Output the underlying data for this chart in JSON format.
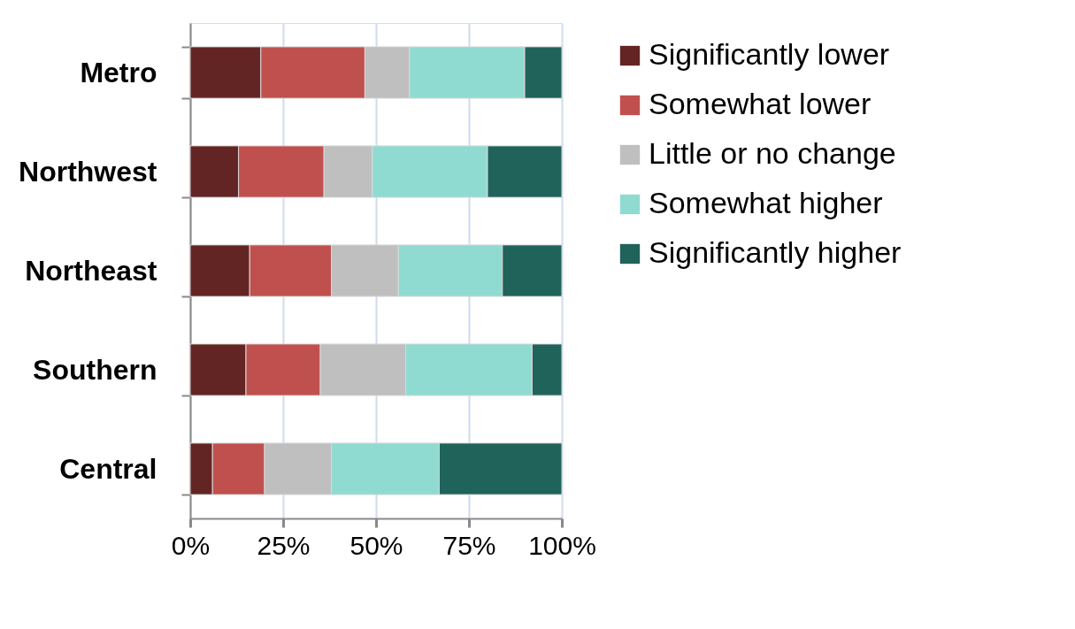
{
  "chart_data": {
    "type": "bar",
    "orientation": "horizontal",
    "stacked": true,
    "categories": [
      "Metro",
      "Northwest",
      "Northeast",
      "Southern",
      "Central"
    ],
    "series": [
      {
        "name": "Significantly lower",
        "color": "#632523",
        "values": [
          19,
          13,
          16,
          15,
          6
        ]
      },
      {
        "name": "Somewhat lower",
        "color": "#c0504d",
        "values": [
          28,
          23,
          22,
          20,
          14
        ]
      },
      {
        "name": "Little or no change",
        "color": "#bfbfbf",
        "values": [
          12,
          13,
          18,
          23,
          18
        ]
      },
      {
        "name": "Somewhat higher",
        "color": "#8fdbd1",
        "values": [
          31,
          31,
          28,
          34,
          29
        ]
      },
      {
        "name": "Significantly higher",
        "color": "#1f635b",
        "values": [
          10,
          20,
          16,
          8,
          33
        ]
      }
    ],
    "xlim": [
      0,
      100
    ],
    "xticks": [
      {
        "value": 0,
        "label": "0%"
      },
      {
        "value": 25,
        "label": "25%"
      },
      {
        "value": 50,
        "label": "50%"
      },
      {
        "value": 75,
        "label": "75%"
      },
      {
        "value": 100,
        "label": "100%"
      }
    ],
    "grid": "x",
    "legend": "right"
  }
}
